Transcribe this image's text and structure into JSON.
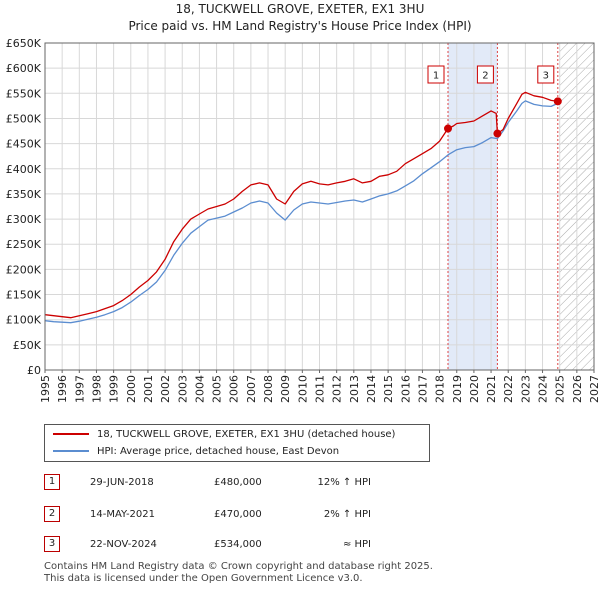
{
  "title_line1": "18, TUCKWELL GROVE, EXETER, EX1 3HU",
  "title_line2": "Price paid vs. HM Land Registry's House Price Index (HPI)",
  "chart_data": {
    "type": "line",
    "title": "18, TUCKWELL GROVE, EXETER, EX1 3HU — Price paid vs. HM Land Registry's House Price Index (HPI)",
    "xlabel": "",
    "ylabel": "",
    "xlim": [
      1995,
      2027
    ],
    "ylim": [
      0,
      650000
    ],
    "x_ticks": [
      "1995",
      "1996",
      "1997",
      "1998",
      "1999",
      "2000",
      "2001",
      "2002",
      "2003",
      "2004",
      "2005",
      "2006",
      "2007",
      "2008",
      "2009",
      "2010",
      "2011",
      "2012",
      "2013",
      "2014",
      "2015",
      "2016",
      "2017",
      "2018",
      "2019",
      "2020",
      "2021",
      "2022",
      "2023",
      "2024",
      "2025",
      "2026",
      "2027"
    ],
    "y_ticks": [
      {
        "value": 0,
        "label": "£0"
      },
      {
        "value": 50000,
        "label": "£50K"
      },
      {
        "value": 100000,
        "label": "£100K"
      },
      {
        "value": 150000,
        "label": "£150K"
      },
      {
        "value": 200000,
        "label": "£200K"
      },
      {
        "value": 250000,
        "label": "£250K"
      },
      {
        "value": 300000,
        "label": "£300K"
      },
      {
        "value": 350000,
        "label": "£350K"
      },
      {
        "value": 400000,
        "label": "£400K"
      },
      {
        "value": 450000,
        "label": "£450K"
      },
      {
        "value": 500000,
        "label": "£500K"
      },
      {
        "value": 550000,
        "label": "£550K"
      },
      {
        "value": 600000,
        "label": "£600K"
      },
      {
        "value": 650000,
        "label": "£650K"
      }
    ],
    "grid": true,
    "shaded_regions": [
      {
        "from": 2018.49,
        "to": 2021.37
      }
    ],
    "hatched_region": {
      "from": 2025.0,
      "to": 2027.0
    },
    "series": [
      {
        "name": "18, TUCKWELL GROVE, EXETER, EX1 3HU (detached house)",
        "color": "#cc0000",
        "points": [
          [
            1995.0,
            110000
          ],
          [
            1995.5,
            108000
          ],
          [
            1996.0,
            106000
          ],
          [
            1996.5,
            104000
          ],
          [
            1997.0,
            108000
          ],
          [
            1997.5,
            112000
          ],
          [
            1998.0,
            116000
          ],
          [
            1998.5,
            122000
          ],
          [
            1999.0,
            128000
          ],
          [
            1999.5,
            138000
          ],
          [
            2000.0,
            150000
          ],
          [
            2000.5,
            165000
          ],
          [
            2001.0,
            178000
          ],
          [
            2001.5,
            195000
          ],
          [
            2002.0,
            220000
          ],
          [
            2002.5,
            255000
          ],
          [
            2003.0,
            280000
          ],
          [
            2003.5,
            300000
          ],
          [
            2004.0,
            310000
          ],
          [
            2004.5,
            320000
          ],
          [
            2005.0,
            325000
          ],
          [
            2005.5,
            330000
          ],
          [
            2006.0,
            340000
          ],
          [
            2006.5,
            355000
          ],
          [
            2007.0,
            368000
          ],
          [
            2007.5,
            372000
          ],
          [
            2008.0,
            368000
          ],
          [
            2008.5,
            340000
          ],
          [
            2009.0,
            330000
          ],
          [
            2009.5,
            355000
          ],
          [
            2010.0,
            370000
          ],
          [
            2010.5,
            375000
          ],
          [
            2011.0,
            370000
          ],
          [
            2011.5,
            368000
          ],
          [
            2012.0,
            372000
          ],
          [
            2012.5,
            375000
          ],
          [
            2013.0,
            380000
          ],
          [
            2013.5,
            372000
          ],
          [
            2014.0,
            375000
          ],
          [
            2014.5,
            385000
          ],
          [
            2015.0,
            388000
          ],
          [
            2015.5,
            395000
          ],
          [
            2016.0,
            410000
          ],
          [
            2016.5,
            420000
          ],
          [
            2017.0,
            430000
          ],
          [
            2017.5,
            440000
          ],
          [
            2018.0,
            455000
          ],
          [
            2018.49,
            480000
          ],
          [
            2018.8,
            485000
          ],
          [
            2019.0,
            490000
          ],
          [
            2019.5,
            492000
          ],
          [
            2020.0,
            495000
          ],
          [
            2020.5,
            505000
          ],
          [
            2021.0,
            515000
          ],
          [
            2021.3,
            510000
          ],
          [
            2021.37,
            470000
          ],
          [
            2021.7,
            478000
          ],
          [
            2022.0,
            500000
          ],
          [
            2022.5,
            530000
          ],
          [
            2022.8,
            548000
          ],
          [
            2023.0,
            552000
          ],
          [
            2023.5,
            545000
          ],
          [
            2024.0,
            542000
          ],
          [
            2024.5,
            536000
          ],
          [
            2024.89,
            534000
          ],
          [
            2025.0,
            538000
          ]
        ]
      },
      {
        "name": "HPI: Average price, detached house, East Devon",
        "color": "#5b8dd0",
        "points": [
          [
            1995.0,
            98000
          ],
          [
            1995.5,
            96000
          ],
          [
            1996.0,
            95000
          ],
          [
            1996.5,
            94000
          ],
          [
            1997.0,
            97000
          ],
          [
            1997.5,
            101000
          ],
          [
            1998.0,
            105000
          ],
          [
            1998.5,
            110000
          ],
          [
            1999.0,
            116000
          ],
          [
            1999.5,
            124000
          ],
          [
            2000.0,
            135000
          ],
          [
            2000.5,
            148000
          ],
          [
            2001.0,
            160000
          ],
          [
            2001.5,
            175000
          ],
          [
            2002.0,
            198000
          ],
          [
            2002.5,
            228000
          ],
          [
            2003.0,
            252000
          ],
          [
            2003.5,
            272000
          ],
          [
            2004.0,
            285000
          ],
          [
            2004.5,
            298000
          ],
          [
            2005.0,
            302000
          ],
          [
            2005.5,
            306000
          ],
          [
            2006.0,
            314000
          ],
          [
            2006.5,
            322000
          ],
          [
            2007.0,
            332000
          ],
          [
            2007.5,
            336000
          ],
          [
            2008.0,
            332000
          ],
          [
            2008.5,
            312000
          ],
          [
            2009.0,
            298000
          ],
          [
            2009.5,
            318000
          ],
          [
            2010.0,
            330000
          ],
          [
            2010.5,
            334000
          ],
          [
            2011.0,
            332000
          ],
          [
            2011.5,
            330000
          ],
          [
            2012.0,
            333000
          ],
          [
            2012.5,
            336000
          ],
          [
            2013.0,
            338000
          ],
          [
            2013.5,
            334000
          ],
          [
            2014.0,
            340000
          ],
          [
            2014.5,
            346000
          ],
          [
            2015.0,
            350000
          ],
          [
            2015.5,
            356000
          ],
          [
            2016.0,
            366000
          ],
          [
            2016.5,
            376000
          ],
          [
            2017.0,
            390000
          ],
          [
            2017.5,
            402000
          ],
          [
            2018.0,
            414000
          ],
          [
            2018.5,
            428000
          ],
          [
            2019.0,
            438000
          ],
          [
            2019.5,
            442000
          ],
          [
            2020.0,
            444000
          ],
          [
            2020.5,
            452000
          ],
          [
            2021.0,
            462000
          ],
          [
            2021.37,
            460000
          ],
          [
            2021.7,
            475000
          ],
          [
            2022.0,
            492000
          ],
          [
            2022.5,
            515000
          ],
          [
            2022.8,
            530000
          ],
          [
            2023.0,
            535000
          ],
          [
            2023.5,
            528000
          ],
          [
            2024.0,
            525000
          ],
          [
            2024.5,
            524000
          ],
          [
            2024.89,
            530000
          ],
          [
            2025.0,
            532000
          ]
        ]
      }
    ],
    "sales": [
      {
        "label": "1",
        "x": 2018.49,
        "price": 480000,
        "date": "29-JUN-2018",
        "price_label": "£480,000",
        "hpi_note": "12% ↑ HPI"
      },
      {
        "label": "2",
        "x": 2021.37,
        "price": 470000,
        "date": "14-MAY-2021",
        "price_label": "£470,000",
        "hpi_note": "2% ↑ HPI"
      },
      {
        "label": "3",
        "x": 2024.89,
        "price": 534000,
        "date": "22-NOV-2024",
        "price_label": "£534,000",
        "hpi_note": "≈ HPI"
      }
    ]
  },
  "legend": {
    "property": "18, TUCKWELL GROVE, EXETER, EX1 3HU (detached house)",
    "hpi": "HPI: Average price, detached house, East Devon"
  },
  "footer": {
    "line1": "Contains HM Land Registry data © Crown copyright and database right 2025.",
    "line2": "This data is licensed under the Open Government Licence v3.0."
  }
}
